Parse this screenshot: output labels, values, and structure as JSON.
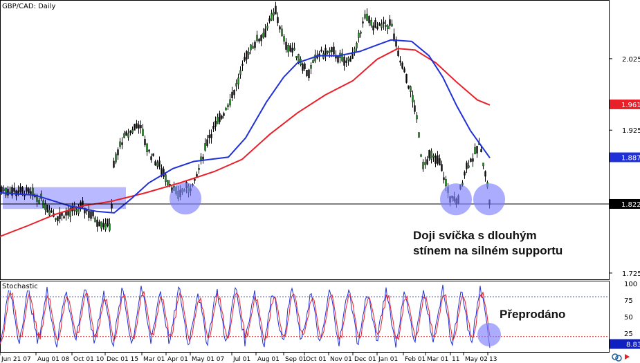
{
  "chart_data": {
    "type": "candlestick",
    "title": "GBP/CAD: Daily",
    "lower_panel_title": "Stochastic",
    "y_ticks": [
      2.0258,
      1.9258,
      1.7258
    ],
    "ylim": [
      1.717,
      2.107
    ],
    "price_badges": [
      {
        "value": "1.9619",
        "color": "#e8202a"
      },
      {
        "value": "1.8878",
        "color": "#2030d8"
      },
      {
        "value": "1.8225",
        "color": "#000000"
      }
    ],
    "support_level": 1.8225,
    "stochastic_ticks": [
      100,
      75,
      50,
      25
    ],
    "stochastic_levels": [
      80,
      20
    ],
    "stochastic_value": "8.83",
    "x_labels": [
      "Jun 21 07",
      "Aug 01 08",
      "Oct 01 10",
      "Dec 01 15",
      "Mar 01",
      "Apr 01",
      "May 01 07",
      "Jul 01",
      "Aug 01",
      "Sep 01",
      "Oct 01",
      "Nov 01",
      "Dec 01",
      "Jan 01",
      "Feb 01",
      "Mar 01",
      "11",
      "May 02",
      "13"
    ],
    "price_path": [
      [
        0,
        1.843
      ],
      [
        40,
        1.838
      ],
      [
        60,
        1.828
      ],
      [
        80,
        1.805
      ],
      [
        100,
        1.81
      ],
      [
        120,
        1.818
      ],
      [
        140,
        1.8
      ],
      [
        155,
        1.792
      ],
      [
        160,
        1.795
      ],
      [
        163,
        1.872
      ],
      [
        175,
        1.91
      ],
      [
        200,
        1.935
      ],
      [
        215,
        1.895
      ],
      [
        235,
        1.868
      ],
      [
        255,
        1.835
      ],
      [
        270,
        1.845
      ],
      [
        280,
        1.848
      ],
      [
        300,
        1.915
      ],
      [
        320,
        1.945
      ],
      [
        340,
        1.985
      ],
      [
        360,
        2.04
      ],
      [
        380,
        2.06
      ],
      [
        398,
        2.092
      ],
      [
        410,
        2.05
      ],
      [
        430,
        2.03
      ],
      [
        445,
        2.005
      ],
      [
        460,
        2.032
      ],
      [
        480,
        2.035
      ],
      [
        500,
        2.02
      ],
      [
        515,
        2.04
      ],
      [
        525,
        2.085
      ],
      [
        545,
        2.068
      ],
      [
        565,
        2.075
      ],
      [
        575,
        2.03
      ],
      [
        590,
        1.99
      ],
      [
        600,
        1.955
      ],
      [
        610,
        1.878
      ],
      [
        620,
        1.89
      ],
      [
        635,
        1.88
      ],
      [
        650,
        1.832
      ],
      [
        660,
        1.822
      ],
      [
        672,
        1.872
      ],
      [
        685,
        1.89
      ],
      [
        692,
        1.905
      ],
      [
        700,
        1.875
      ],
      [
        708,
        1.82
      ]
    ],
    "ma_fast_path": [
      [
        0,
        1.838
      ],
      [
        50,
        1.835
      ],
      [
        100,
        1.82
      ],
      [
        140,
        1.812
      ],
      [
        165,
        1.81
      ],
      [
        190,
        1.83
      ],
      [
        215,
        1.852
      ],
      [
        250,
        1.872
      ],
      [
        280,
        1.882
      ],
      [
        305,
        1.885
      ],
      [
        330,
        1.888
      ],
      [
        355,
        1.915
      ],
      [
        385,
        1.965
      ],
      [
        410,
        2.0
      ],
      [
        430,
        2.02
      ],
      [
        460,
        2.03
      ],
      [
        490,
        2.03
      ],
      [
        520,
        2.036
      ],
      [
        545,
        2.045
      ],
      [
        565,
        2.052
      ],
      [
        595,
        2.05
      ],
      [
        620,
        2.03
      ],
      [
        640,
        2.0
      ],
      [
        660,
        1.96
      ],
      [
        680,
        1.925
      ],
      [
        708,
        1.887
      ]
    ],
    "ma_slow_path": [
      [
        0,
        1.777
      ],
      [
        40,
        1.792
      ],
      [
        80,
        1.808
      ],
      [
        120,
        1.82
      ],
      [
        160,
        1.826
      ],
      [
        210,
        1.838
      ],
      [
        260,
        1.852
      ],
      [
        310,
        1.868
      ],
      [
        350,
        1.885
      ],
      [
        390,
        1.92
      ],
      [
        430,
        1.95
      ],
      [
        470,
        1.975
      ],
      [
        510,
        1.995
      ],
      [
        545,
        2.025
      ],
      [
        575,
        2.04
      ],
      [
        600,
        2.038
      ],
      [
        630,
        2.02
      ],
      [
        660,
        1.993
      ],
      [
        690,
        1.968
      ],
      [
        708,
        1.961
      ]
    ],
    "stochastic_oscillation_peaks": [
      96,
      92,
      90,
      94,
      95,
      88,
      93,
      97,
      91,
      95,
      89,
      94,
      96,
      90,
      93,
      95,
      88,
      92,
      96,
      90,
      94,
      91,
      93,
      97,
      89,
      95
    ],
    "stochastic_oscillation_troughs": [
      6,
      10,
      8,
      5,
      12,
      9,
      7,
      6,
      11,
      8,
      5,
      9,
      7,
      12,
      6,
      8,
      10,
      5,
      9,
      7,
      11,
      6,
      8,
      9,
      5,
      6
    ],
    "annotations": [
      {
        "text_line1": "Doji svíčka s dlouhým",
        "text_line2": "stínem na silném supportu"
      },
      {
        "text_line1": "Přeprodáno"
      }
    ],
    "highlight_color": "#8080ff"
  }
}
